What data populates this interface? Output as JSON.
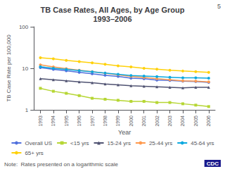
{
  "chart_data": {
    "type": "line",
    "title": "TB Case Rates, All Ages, by Age Group\n1993–2006",
    "xlabel": "Year",
    "ylabel": "TB Case Rate per 100,000",
    "x": [
      1993,
      1994,
      1995,
      1996,
      1997,
      1998,
      1999,
      2000,
      2001,
      2002,
      2003,
      2004,
      2005,
      2006
    ],
    "series": [
      {
        "name": "Overall US",
        "marker": "circle",
        "values": [
          10.4,
          9.4,
          8.7,
          8.0,
          7.4,
          6.8,
          6.4,
          5.8,
          5.6,
          5.2,
          5.1,
          4.9,
          4.8,
          4.6
        ]
      },
      {
        "name": "<15 yrs",
        "marker": "square",
        "values": [
          3.3,
          2.8,
          2.5,
          2.2,
          1.9,
          1.8,
          1.7,
          1.6,
          1.6,
          1.5,
          1.5,
          1.4,
          1.3,
          1.2
        ]
      },
      {
        "name": "15-24 yrs",
        "marker": "triangle",
        "values": [
          5.6,
          5.3,
          5.0,
          4.7,
          4.5,
          4.2,
          4.0,
          3.8,
          3.7,
          3.6,
          3.5,
          3.4,
          3.5,
          3.5
        ]
      },
      {
        "name": "25-44 yrs",
        "marker": "circle",
        "values": [
          12.1,
          10.8,
          9.8,
          9.0,
          8.3,
          7.6,
          7.0,
          6.4,
          6.0,
          5.6,
          5.3,
          5.0,
          4.9,
          4.7
        ]
      },
      {
        "name": "45-64 yrs",
        "marker": "circle",
        "values": [
          10.9,
          10.0,
          9.4,
          8.8,
          8.2,
          7.7,
          7.2,
          6.7,
          6.5,
          6.3,
          6.1,
          5.9,
          5.9,
          5.8
        ]
      },
      {
        "name": "65+ yrs",
        "marker": "circle",
        "values": [
          18.0,
          17.0,
          15.5,
          14.5,
          13.5,
          12.5,
          11.5,
          10.8,
          10.0,
          9.5,
          9.0,
          8.6,
          8.3,
          8.0
        ]
      }
    ],
    "xlim": [
      1992.5,
      2006.5
    ],
    "xticks": [
      1993,
      1994,
      1995,
      1996,
      1997,
      1998,
      1999,
      2000,
      2001,
      2002,
      2003,
      2004,
      2005,
      2006
    ],
    "ylim": [
      1,
      100
    ],
    "yticks": [
      1,
      10,
      100
    ],
    "log": "y",
    "grid": false,
    "legend": "bottom",
    "annotations": [
      "Note:  Rates presented on a logarithmic scale",
      "5",
      "CDC"
    ]
  }
}
